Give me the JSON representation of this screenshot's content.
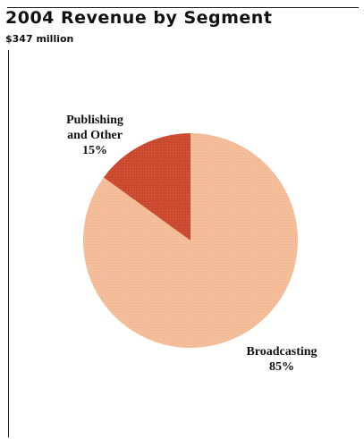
{
  "chart_data": {
    "type": "pie",
    "title": "2004 Revenue by Segment",
    "subtitle": "$347 million",
    "slices": [
      {
        "label_lines": [
          "Broadcasting",
          "85%"
        ],
        "value": 85,
        "color": "#f4be9a"
      },
      {
        "label_lines": [
          "Publishing",
          "and Other",
          "15%"
        ],
        "value": 15,
        "color": "#c9482e"
      }
    ]
  }
}
